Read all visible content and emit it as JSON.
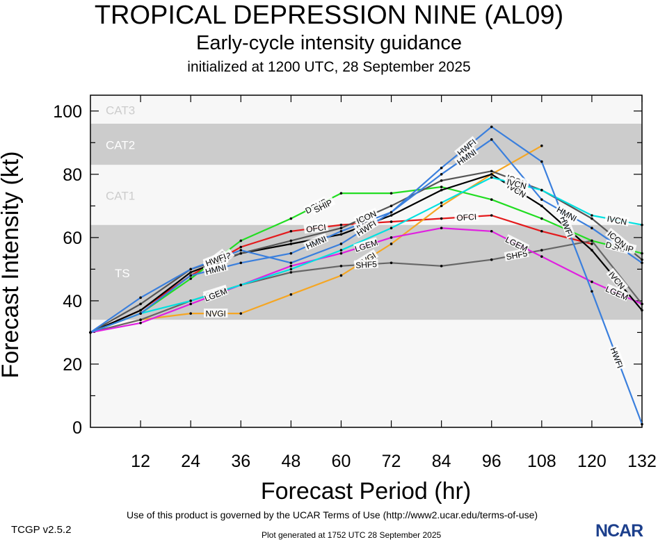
{
  "header": {
    "title": "TROPICAL DEPRESSION NINE (AL09)",
    "subtitle": "Early-cycle intensity guidance",
    "init": "initialized at 1200 UTC, 28 September 2025"
  },
  "footer": {
    "terms": "Use of this product is governed by the UCAR Terms of Use (http://www2.ucar.edu/terms-of-use)",
    "generated": "Plot generated at 1752 UTC   28 September 2025",
    "version": "TCGP v2.5.2",
    "logo_text": "NCAR"
  },
  "chart_data": {
    "type": "line",
    "xlabel": "Forecast Period (hr)",
    "ylabel": "Forecast Intensity (kt)",
    "xlim": [
      0,
      132
    ],
    "ylim": [
      0,
      100
    ],
    "xticks": [
      12,
      24,
      36,
      48,
      60,
      72,
      84,
      96,
      108,
      120,
      132
    ],
    "yticks": [
      0,
      20,
      40,
      60,
      80,
      100
    ],
    "bands": [
      {
        "label": "TS",
        "from": 34,
        "to": 64,
        "color": "#cccccc"
      },
      {
        "label": "CAT1",
        "from": 64,
        "to": 83,
        "color": "#f7f7f7"
      },
      {
        "label": "CAT2",
        "from": 83,
        "to": 96,
        "color": "#cccccc"
      },
      {
        "label": "CAT3",
        "from": 96,
        "to": 105,
        "color": "#f7f7f7"
      }
    ],
    "below_band_color": "#f7f7f7",
    "series": [
      {
        "name": "OFCI",
        "color": "#e41a1c",
        "x": [
          0,
          12,
          24,
          36,
          48,
          60,
          72,
          84,
          96,
          108,
          120
        ],
        "y": [
          30,
          37,
          48,
          57,
          62,
          64,
          65,
          66,
          67,
          62,
          58
        ],
        "labels_at": [
          24,
          48,
          84
        ]
      },
      {
        "name": "NVGI",
        "color": "#f5a623",
        "x": [
          0,
          12,
          24,
          36,
          48,
          60,
          72,
          84,
          96,
          108
        ],
        "y": [
          30,
          34,
          36,
          36,
          42,
          48,
          58,
          70,
          80,
          89
        ],
        "labels_at": [
          24,
          60
        ]
      },
      {
        "name": "SHF5",
        "color": "#666666",
        "x": [
          0,
          12,
          24,
          36,
          48,
          60,
          72,
          84,
          96,
          108,
          120,
          132
        ],
        "y": [
          30,
          34,
          40,
          45,
          49,
          51,
          52,
          51,
          53,
          56,
          59,
          39
        ],
        "labels_at": [
          24,
          60,
          96
        ]
      },
      {
        "name": "LGEM",
        "color": "#e020e0",
        "x": [
          0,
          12,
          24,
          36,
          48,
          60,
          72,
          84,
          96,
          108,
          120,
          132
        ],
        "y": [
          30,
          33,
          39,
          45,
          51,
          55,
          60,
          63,
          62,
          54,
          46,
          39
        ],
        "labels_at": [
          24,
          60,
          96,
          120
        ]
      },
      {
        "name": "DSHP",
        "color": "#22dd22",
        "x": [
          0,
          12,
          24,
          36,
          48,
          60,
          72,
          84,
          96,
          108,
          120,
          132
        ],
        "y": [
          30,
          36,
          47,
          59,
          66,
          74,
          74,
          76,
          72,
          66,
          59,
          55
        ],
        "labels_at": [
          24,
          48,
          120
        ]
      },
      {
        "name": "SHIP",
        "color": "#22dd22",
        "x": [],
        "y": [],
        "labels_at": [
          24,
          48,
          120
        ]
      },
      {
        "name": "IVCN",
        "color": "#000000",
        "x": [
          0,
          12,
          24,
          36,
          48,
          60,
          72,
          84,
          96,
          108,
          120,
          132
        ],
        "y": [
          30,
          37,
          49,
          55,
          58,
          61,
          67,
          75,
          80,
          70,
          56,
          37
        ],
        "labels_at": [
          24,
          60,
          96,
          120
        ]
      },
      {
        "name": "ICON",
        "color": "#555555",
        "x": [
          0,
          12,
          24,
          36,
          48,
          60,
          72,
          84,
          96,
          108,
          120,
          132
        ],
        "y": [
          30,
          39,
          50,
          55,
          59,
          63,
          70,
          78,
          81,
          75,
          66,
          53
        ],
        "labels_at": [
          24,
          60,
          96,
          120
        ]
      },
      {
        "name": "IVCN",
        "color": "#00e0e0",
        "x": [
          0,
          12,
          24,
          36,
          48,
          60,
          72,
          84,
          96,
          108,
          120,
          132
        ],
        "y": [
          30,
          36,
          40,
          45,
          50,
          56,
          63,
          71,
          79,
          75,
          67,
          64
        ],
        "labels_at": [
          96,
          120
        ]
      },
      {
        "name": "HWFI",
        "color": "#3a7fdd",
        "x": [
          0,
          12,
          24,
          36,
          48,
          60,
          72,
          84,
          96,
          108,
          120,
          132
        ],
        "y": [
          30,
          41,
          50,
          56,
          52,
          58,
          68,
          82,
          95,
          84,
          43,
          1
        ],
        "labels_at": [
          24,
          60,
          84,
          108,
          120
        ]
      },
      {
        "name": "HMNI",
        "color": "#3a7fdd",
        "x": [
          0,
          12,
          24,
          36,
          48,
          60,
          72,
          84,
          96,
          108,
          120,
          132
        ],
        "y": [
          30,
          36,
          48,
          52,
          55,
          62,
          68,
          80,
          91,
          72,
          63,
          52
        ],
        "labels_at": [
          24,
          48,
          84,
          108
        ]
      }
    ]
  }
}
